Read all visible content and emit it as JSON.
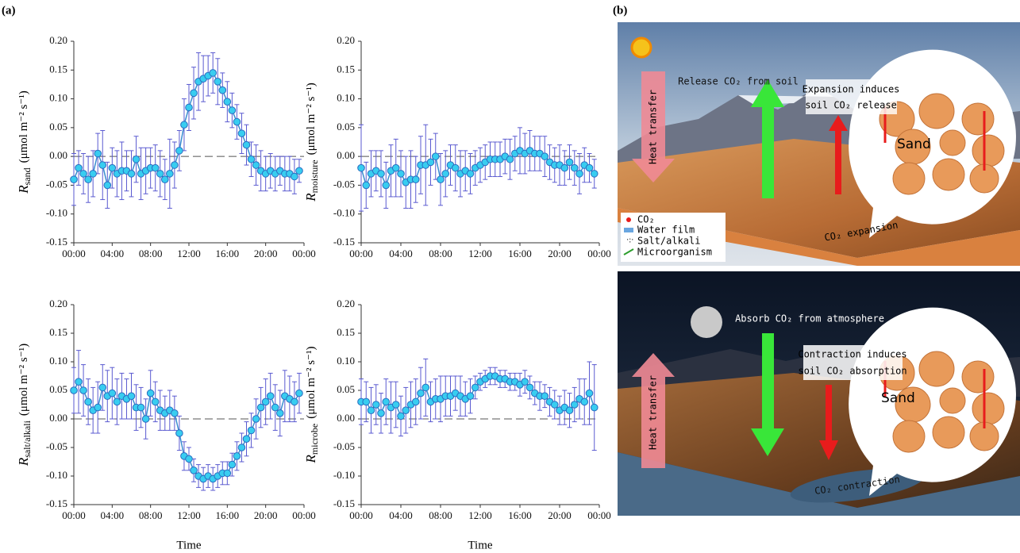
{
  "panel_labels": [
    "(a)",
    "(b)"
  ],
  "chart_data": [
    {
      "type": "line",
      "ylabel_symbol": "R",
      "ylabel_sub": "sand",
      "ylabel_unit": "(μmol m⁻² s⁻¹)",
      "x": [
        0,
        0.5,
        1,
        1.5,
        2,
        2.5,
        3,
        3.5,
        4,
        4.5,
        5,
        5.5,
        6,
        6.5,
        7,
        7.5,
        8,
        8.5,
        9,
        9.5,
        10,
        10.5,
        11,
        11.5,
        12,
        12.5,
        13,
        13.5,
        14,
        14.5,
        15,
        15.5,
        16,
        16.5,
        17,
        17.5,
        18,
        18.5,
        19,
        19.5,
        20,
        20.5,
        21,
        21.5,
        22,
        22.5,
        23,
        23.5
      ],
      "series": [
        {
          "color": "#3b8ed0",
          "marker_color": "#38cdf0",
          "error_color": "#5a5ad0",
          "values": [
            -0.04,
            -0.02,
            -0.03,
            -0.04,
            -0.03,
            0.005,
            -0.015,
            -0.05,
            -0.02,
            -0.03,
            -0.025,
            -0.025,
            -0.03,
            -0.005,
            -0.03,
            -0.025,
            -0.02,
            -0.02,
            -0.03,
            -0.04,
            -0.03,
            -0.015,
            0.01,
            0.055,
            0.085,
            0.11,
            0.13,
            0.135,
            0.14,
            0.145,
            0.13,
            0.115,
            0.095,
            0.08,
            0.06,
            0.04,
            0.02,
            -0.005,
            -0.015,
            -0.025,
            -0.03,
            -0.025,
            -0.03,
            -0.025,
            -0.03,
            -0.03,
            -0.035,
            -0.025
          ],
          "errors": [
            0.045,
            0.03,
            0.035,
            0.04,
            0.04,
            0.035,
            0.06,
            0.04,
            0.035,
            0.04,
            0.05,
            0.035,
            0.04,
            0.04,
            0.045,
            0.04,
            0.035,
            0.04,
            0.04,
            0.035,
            0.06,
            0.04,
            0.035,
            0.045,
            0.04,
            0.045,
            0.05,
            0.04,
            0.035,
            0.035,
            0.04,
            0.03,
            0.035,
            0.03,
            0.03,
            0.035,
            0.035,
            0.03,
            0.035,
            0.035,
            0.03,
            0.03,
            0.03,
            0.025,
            0.03,
            0.03,
            0.03,
            0.02
          ]
        }
      ],
      "xlim": [
        0,
        24
      ],
      "ylim": [
        -0.15,
        0.2
      ],
      "hline": 0,
      "xticks": [
        {
          "value": 0,
          "label": "00:00"
        },
        {
          "value": 4,
          "label": "04:00"
        },
        {
          "value": 8,
          "label": "08:00"
        },
        {
          "value": 12,
          "label": "12:00"
        },
        {
          "value": 16,
          "label": "16:00"
        },
        {
          "value": 20,
          "label": "20:00"
        },
        {
          "value": 24,
          "label": "00:00"
        }
      ],
      "yticks": [
        {
          "value": 0.2,
          "label": "0.20"
        },
        {
          "value": 0.15,
          "label": "0.15"
        },
        {
          "value": 0.1,
          "label": "0.10"
        },
        {
          "value": 0.05,
          "label": "0.05"
        },
        {
          "value": 0,
          "label": "0.00"
        },
        {
          "value": -0.05,
          "label": "-0.05"
        },
        {
          "value": -0.1,
          "label": "-0.10"
        },
        {
          "value": -0.15,
          "label": "-0.15"
        }
      ]
    },
    {
      "type": "line",
      "ylabel_symbol": "R",
      "ylabel_sub": "moisture",
      "ylabel_unit": "(μmol m⁻² s⁻¹)",
      "x": [
        0,
        0.5,
        1,
        1.5,
        2,
        2.5,
        3,
        3.5,
        4,
        4.5,
        5,
        5.5,
        6,
        6.5,
        7,
        7.5,
        8,
        8.5,
        9,
        9.5,
        10,
        10.5,
        11,
        11.5,
        12,
        12.5,
        13,
        13.5,
        14,
        14.5,
        15,
        15.5,
        16,
        16.5,
        17,
        17.5,
        18,
        18.5,
        19,
        19.5,
        20,
        20.5,
        21,
        21.5,
        22,
        22.5,
        23,
        23.5
      ],
      "series": [
        {
          "color": "#3b8ed0",
          "marker_color": "#38cdf0",
          "error_color": "#5a5ad0",
          "values": [
            -0.02,
            -0.05,
            -0.03,
            -0.025,
            -0.03,
            -0.05,
            -0.025,
            -0.02,
            -0.03,
            -0.045,
            -0.04,
            -0.04,
            -0.015,
            -0.015,
            -0.01,
            0,
            -0.04,
            -0.03,
            -0.015,
            -0.02,
            -0.03,
            -0.025,
            -0.03,
            -0.02,
            -0.015,
            -0.01,
            -0.005,
            -0.005,
            -0.005,
            0,
            -0.005,
            0.005,
            0.01,
            0.005,
            0.01,
            0.005,
            0.005,
            0,
            -0.01,
            -0.015,
            -0.015,
            -0.02,
            -0.01,
            -0.02,
            -0.03,
            -0.015,
            -0.02,
            -0.03
          ],
          "errors": [
            0.075,
            0.04,
            0.04,
            0.035,
            0.04,
            0.04,
            0.045,
            0.05,
            0.04,
            0.045,
            0.05,
            0.04,
            0.05,
            0.07,
            0.04,
            0.04,
            0.045,
            0.04,
            0.035,
            0.04,
            0.04,
            0.035,
            0.035,
            0.03,
            0.03,
            0.03,
            0.03,
            0.03,
            0.03,
            0.03,
            0.035,
            0.03,
            0.04,
            0.035,
            0.035,
            0.03,
            0.03,
            0.035,
            0.03,
            0.03,
            0.035,
            0.03,
            0.03,
            0.03,
            0.035,
            0.03,
            0.025,
            0.025
          ]
        }
      ],
      "xlim": [
        0,
        24
      ],
      "ylim": [
        -0.15,
        0.2
      ],
      "hline": 0,
      "xticks": [
        {
          "value": 0,
          "label": "00:00"
        },
        {
          "value": 4,
          "label": "04:00"
        },
        {
          "value": 8,
          "label": "08:00"
        },
        {
          "value": 12,
          "label": "12:00"
        },
        {
          "value": 16,
          "label": "16:00"
        },
        {
          "value": 20,
          "label": "20:00"
        },
        {
          "value": 24,
          "label": "00:00"
        }
      ],
      "yticks": [
        {
          "value": 0.2,
          "label": "0.20"
        },
        {
          "value": 0.15,
          "label": "0.15"
        },
        {
          "value": 0.1,
          "label": "0.10"
        },
        {
          "value": 0.05,
          "label": "0.05"
        },
        {
          "value": 0,
          "label": "0.00"
        },
        {
          "value": -0.05,
          "label": "-0.05"
        },
        {
          "value": -0.1,
          "label": "-0.10"
        },
        {
          "value": -0.15,
          "label": "-0.15"
        }
      ]
    },
    {
      "type": "line",
      "ylabel_symbol": "R",
      "ylabel_sub": "salt/alkali",
      "ylabel_unit": "(μmol m⁻² s⁻¹)",
      "xlabel": "Time",
      "x": [
        0,
        0.5,
        1,
        1.5,
        2,
        2.5,
        3,
        3.5,
        4,
        4.5,
        5,
        5.5,
        6,
        6.5,
        7,
        7.5,
        8,
        8.5,
        9,
        9.5,
        10,
        10.5,
        11,
        11.5,
        12,
        12.5,
        13,
        13.5,
        14,
        14.5,
        15,
        15.5,
        16,
        16.5,
        17,
        17.5,
        18,
        18.5,
        19,
        19.5,
        20,
        20.5,
        21,
        21.5,
        22,
        22.5,
        23,
        23.5
      ],
      "series": [
        {
          "color": "#3b8ed0",
          "marker_color": "#38cdf0",
          "error_color": "#5a5ad0",
          "values": [
            0.05,
            0.065,
            0.05,
            0.03,
            0.015,
            0.02,
            0.055,
            0.04,
            0.045,
            0.03,
            0.04,
            0.035,
            0.04,
            0.02,
            0.02,
            0,
            0.045,
            0.03,
            0.015,
            0.01,
            0.015,
            0.01,
            -0.025,
            -0.065,
            -0.07,
            -0.09,
            -0.1,
            -0.105,
            -0.1,
            -0.105,
            -0.1,
            -0.095,
            -0.095,
            -0.08,
            -0.065,
            -0.05,
            -0.035,
            -0.02,
            0,
            0.02,
            0.03,
            0.04,
            0.02,
            0.01,
            0.04,
            0.035,
            0.03,
            0.045
          ],
          "errors": [
            0.04,
            0.055,
            0.045,
            0.04,
            0.04,
            0.045,
            0.04,
            0.045,
            0.045,
            0.04,
            0.04,
            0.035,
            0.04,
            0.04,
            0.035,
            0.035,
            0.04,
            0.035,
            0.035,
            0.03,
            0.035,
            0.03,
            0.03,
            0.025,
            0.02,
            0.02,
            0.02,
            0.02,
            0.02,
            0.02,
            0.02,
            0.02,
            0.02,
            0.02,
            0.025,
            0.025,
            0.03,
            0.03,
            0.035,
            0.035,
            0.04,
            0.04,
            0.04,
            0.04,
            0.045,
            0.04,
            0.035,
            0.035
          ]
        }
      ],
      "xlim": [
        0,
        24
      ],
      "ylim": [
        -0.15,
        0.2
      ],
      "hline": 0,
      "xticks": [
        {
          "value": 0,
          "label": "00:00"
        },
        {
          "value": 4,
          "label": "04:00"
        },
        {
          "value": 8,
          "label": "08:00"
        },
        {
          "value": 12,
          "label": "12:00"
        },
        {
          "value": 16,
          "label": "16:00"
        },
        {
          "value": 20,
          "label": "20:00"
        },
        {
          "value": 24,
          "label": "00:00"
        }
      ],
      "yticks": [
        {
          "value": 0.2,
          "label": "0.20"
        },
        {
          "value": 0.15,
          "label": "0.15"
        },
        {
          "value": 0.1,
          "label": "0.10"
        },
        {
          "value": 0.05,
          "label": "0.05"
        },
        {
          "value": 0,
          "label": "0.00"
        },
        {
          "value": -0.05,
          "label": "-0.05"
        },
        {
          "value": -0.1,
          "label": "-0.10"
        },
        {
          "value": -0.15,
          "label": "-0.15"
        }
      ]
    },
    {
      "type": "line",
      "ylabel_symbol": "R",
      "ylabel_sub": "microbe",
      "ylabel_unit": "(μmol m⁻² s⁻¹)",
      "xlabel": "Time",
      "x": [
        0,
        0.5,
        1,
        1.5,
        2,
        2.5,
        3,
        3.5,
        4,
        4.5,
        5,
        5.5,
        6,
        6.5,
        7,
        7.5,
        8,
        8.5,
        9,
        9.5,
        10,
        10.5,
        11,
        11.5,
        12,
        12.5,
        13,
        13.5,
        14,
        14.5,
        15,
        15.5,
        16,
        16.5,
        17,
        17.5,
        18,
        18.5,
        19,
        19.5,
        20,
        20.5,
        21,
        21.5,
        22,
        22.5,
        23,
        23.5
      ],
      "series": [
        {
          "color": "#3b8ed0",
          "marker_color": "#38cdf0",
          "error_color": "#5a5ad0",
          "values": [
            0.03,
            0.03,
            0.015,
            0.025,
            0.01,
            0.03,
            0.02,
            0.025,
            0.005,
            0.015,
            0.025,
            0.03,
            0.045,
            0.055,
            0.03,
            0.035,
            0.035,
            0.04,
            0.04,
            0.045,
            0.04,
            0.035,
            0.04,
            0.055,
            0.065,
            0.07,
            0.075,
            0.075,
            0.07,
            0.07,
            0.065,
            0.065,
            0.06,
            0.065,
            0.055,
            0.045,
            0.04,
            0.04,
            0.03,
            0.025,
            0.015,
            0.02,
            0.015,
            0.025,
            0.035,
            0.03,
            0.045,
            0.02
          ],
          "errors": [
            0.04,
            0.035,
            0.04,
            0.035,
            0.035,
            0.04,
            0.045,
            0.04,
            0.035,
            0.04,
            0.04,
            0.04,
            0.045,
            0.05,
            0.035,
            0.035,
            0.04,
            0.035,
            0.035,
            0.03,
            0.035,
            0.03,
            0.03,
            0.02,
            0.015,
            0.015,
            0.015,
            0.015,
            0.015,
            0.015,
            0.015,
            0.015,
            0.02,
            0.02,
            0.02,
            0.02,
            0.025,
            0.02,
            0.025,
            0.025,
            0.025,
            0.03,
            0.03,
            0.03,
            0.035,
            0.04,
            0.055,
            0.075
          ]
        }
      ],
      "xlim": [
        0,
        24
      ],
      "ylim": [
        -0.15,
        0.2
      ],
      "hline": 0,
      "xticks": [
        {
          "value": 0,
          "label": "00:00"
        },
        {
          "value": 4,
          "label": "04:00"
        },
        {
          "value": 8,
          "label": "08:00"
        },
        {
          "value": 12,
          "label": "12:00"
        },
        {
          "value": 16,
          "label": "16:00"
        },
        {
          "value": 20,
          "label": "20:00"
        },
        {
          "value": 24,
          "label": "00:00"
        }
      ],
      "yticks": [
        {
          "value": 0.2,
          "label": "0.20"
        },
        {
          "value": 0.15,
          "label": "0.15"
        },
        {
          "value": 0.1,
          "label": "0.10"
        },
        {
          "value": 0.05,
          "label": "0.05"
        },
        {
          "value": 0,
          "label": "0.00"
        },
        {
          "value": -0.05,
          "label": "-0.05"
        },
        {
          "value": -0.1,
          "label": "-0.10"
        },
        {
          "value": -0.15,
          "label": "-0.15"
        }
      ]
    }
  ],
  "diagram": {
    "day": {
      "release": "Release CO₂ from soil",
      "induces": [
        "Expansion induces",
        "soil CO₂ release"
      ],
      "heat": "Heat transfer",
      "sand": "Sand",
      "legend": [
        "CO₂",
        "Water film",
        "Salt/alkali",
        "Microorganism"
      ],
      "process": "CO₂ expansion"
    },
    "night": {
      "absorb": "Absorb CO₂ from atmosphere",
      "induces": [
        "Contraction induces",
        "soil CO₂ absorption"
      ],
      "heat": "Heat transfer",
      "sand": "Sand",
      "process": "CO₂ contraction"
    }
  }
}
